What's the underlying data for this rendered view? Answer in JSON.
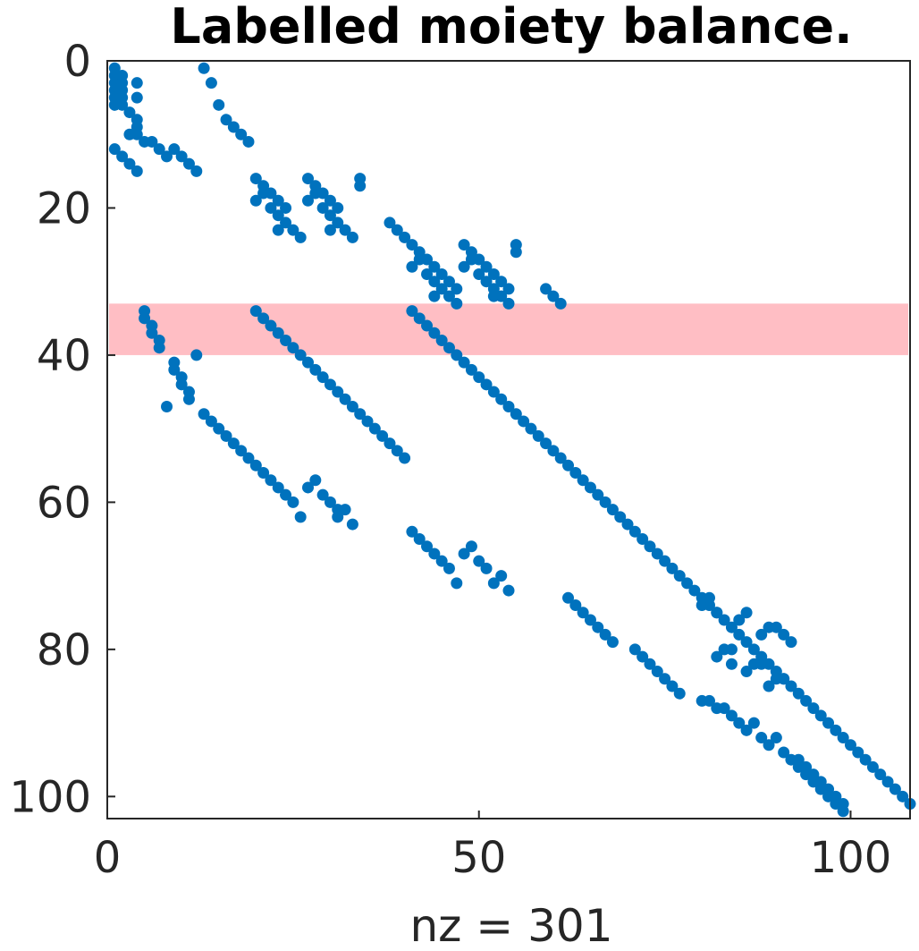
{
  "chart_data": {
    "type": "scatter",
    "title": "Labelled moiety balance.",
    "xlabel": "nz = 301",
    "ylabel": "",
    "xlim": [
      0,
      108
    ],
    "ylim": [
      0,
      103
    ],
    "y_reversed": true,
    "xticks": [
      0,
      50,
      100
    ],
    "yticks": [
      0,
      20,
      40,
      60,
      80,
      100
    ],
    "grid": false,
    "marker_color": "#0072BD",
    "highlight": {
      "y_range": [
        33,
        40
      ],
      "color": "#FFBEC4"
    },
    "points": [
      [
        1,
        1
      ],
      [
        1,
        2
      ],
      [
        1,
        3
      ],
      [
        1,
        4
      ],
      [
        1,
        5
      ],
      [
        1,
        6
      ],
      [
        2,
        2
      ],
      [
        2,
        3
      ],
      [
        2,
        4
      ],
      [
        2,
        5
      ],
      [
        2,
        6
      ],
      [
        3,
        7
      ],
      [
        4,
        8
      ],
      [
        4,
        3
      ],
      [
        4,
        5
      ],
      [
        3,
        10
      ],
      [
        4,
        10
      ],
      [
        4,
        9
      ],
      [
        5,
        11
      ],
      [
        6,
        11
      ],
      [
        7,
        12
      ],
      [
        8,
        13
      ],
      [
        1,
        12
      ],
      [
        2,
        13
      ],
      [
        3,
        14
      ],
      [
        4,
        15
      ],
      [
        9,
        12
      ],
      [
        10,
        13
      ],
      [
        11,
        14
      ],
      [
        12,
        15
      ],
      [
        13,
        1
      ],
      [
        14,
        3
      ],
      [
        15,
        6
      ],
      [
        16,
        8
      ],
      [
        17,
        9
      ],
      [
        18,
        10
      ],
      [
        19,
        11
      ],
      [
        20,
        16
      ],
      [
        21,
        17
      ],
      [
        21,
        18
      ],
      [
        22,
        18
      ],
      [
        23,
        19
      ],
      [
        24,
        20
      ],
      [
        20,
        19
      ],
      [
        22,
        20
      ],
      [
        23,
        21
      ],
      [
        24,
        22
      ],
      [
        25,
        23
      ],
      [
        23,
        23
      ],
      [
        26,
        24
      ],
      [
        27,
        16
      ],
      [
        28,
        17
      ],
      [
        28,
        18
      ],
      [
        29,
        18
      ],
      [
        30,
        19
      ],
      [
        31,
        20
      ],
      [
        27,
        19
      ],
      [
        29,
        20
      ],
      [
        30,
        21
      ],
      [
        31,
        22
      ],
      [
        32,
        23
      ],
      [
        30,
        23
      ],
      [
        33,
        24
      ],
      [
        34,
        16
      ],
      [
        34,
        17
      ],
      [
        38,
        22
      ],
      [
        39,
        23
      ],
      [
        40,
        24
      ],
      [
        41,
        25
      ],
      [
        42,
        26
      ],
      [
        42,
        27
      ],
      [
        43,
        27
      ],
      [
        44,
        28
      ],
      [
        45,
        29
      ],
      [
        46,
        30
      ],
      [
        47,
        31
      ],
      [
        41,
        28
      ],
      [
        43,
        29
      ],
      [
        44,
        30
      ],
      [
        45,
        31
      ],
      [
        44,
        32
      ],
      [
        46,
        32
      ],
      [
        47,
        33
      ],
      [
        48,
        25
      ],
      [
        49,
        26
      ],
      [
        49,
        27
      ],
      [
        50,
        27
      ],
      [
        51,
        28
      ],
      [
        52,
        29
      ],
      [
        53,
        30
      ],
      [
        54,
        31
      ],
      [
        48,
        28
      ],
      [
        50,
        29
      ],
      [
        51,
        30
      ],
      [
        52,
        31
      ],
      [
        52,
        32
      ],
      [
        53,
        32
      ],
      [
        54,
        33
      ],
      [
        55,
        25
      ],
      [
        55,
        26
      ],
      [
        59,
        31
      ],
      [
        60,
        32
      ],
      [
        61,
        33
      ],
      [
        5,
        34
      ],
      [
        5,
        35
      ],
      [
        6,
        36
      ],
      [
        6,
        37
      ],
      [
        7,
        38
      ],
      [
        7,
        39
      ],
      [
        9,
        41
      ],
      [
        9,
        42
      ],
      [
        10,
        43
      ],
      [
        10,
        44
      ],
      [
        11,
        45
      ],
      [
        11,
        46
      ],
      [
        12,
        40
      ],
      [
        8,
        47
      ],
      [
        20,
        34
      ],
      [
        21,
        35
      ],
      [
        22,
        36
      ],
      [
        23,
        37
      ],
      [
        24,
        38
      ],
      [
        25,
        39
      ],
      [
        26,
        40
      ],
      [
        27,
        41
      ],
      [
        28,
        42
      ],
      [
        29,
        43
      ],
      [
        30,
        44
      ],
      [
        31,
        45
      ],
      [
        32,
        46
      ],
      [
        33,
        47
      ],
      [
        34,
        48
      ],
      [
        35,
        49
      ],
      [
        36,
        50
      ],
      [
        37,
        51
      ],
      [
        38,
        52
      ],
      [
        39,
        53
      ],
      [
        40,
        54
      ],
      [
        41,
        34
      ],
      [
        42,
        35
      ],
      [
        43,
        36
      ],
      [
        44,
        37
      ],
      [
        45,
        38
      ],
      [
        46,
        39
      ],
      [
        47,
        40
      ],
      [
        48,
        41
      ],
      [
        49,
        42
      ],
      [
        50,
        43
      ],
      [
        51,
        44
      ],
      [
        52,
        45
      ],
      [
        53,
        46
      ],
      [
        54,
        47
      ],
      [
        55,
        48
      ],
      [
        56,
        49
      ],
      [
        57,
        50
      ],
      [
        58,
        51
      ],
      [
        59,
        52
      ],
      [
        60,
        53
      ],
      [
        61,
        54
      ],
      [
        62,
        55
      ],
      [
        63,
        56
      ],
      [
        64,
        57
      ],
      [
        65,
        58
      ],
      [
        66,
        59
      ],
      [
        67,
        60
      ],
      [
        68,
        61
      ],
      [
        69,
        62
      ],
      [
        70,
        63
      ],
      [
        71,
        64
      ],
      [
        72,
        65
      ],
      [
        73,
        66
      ],
      [
        74,
        67
      ],
      [
        75,
        68
      ],
      [
        76,
        69
      ],
      [
        77,
        70
      ],
      [
        78,
        71
      ],
      [
        79,
        72
      ],
      [
        80,
        73
      ],
      [
        81,
        74
      ],
      [
        82,
        75
      ],
      [
        83,
        76
      ],
      [
        84,
        77
      ],
      [
        85,
        78
      ],
      [
        86,
        79
      ],
      [
        87,
        80
      ],
      [
        88,
        81
      ],
      [
        89,
        82
      ],
      [
        90,
        83
      ],
      [
        91,
        84
      ],
      [
        92,
        85
      ],
      [
        93,
        86
      ],
      [
        94,
        87
      ],
      [
        95,
        88
      ],
      [
        96,
        89
      ],
      [
        97,
        90
      ],
      [
        98,
        91
      ],
      [
        99,
        92
      ],
      [
        100,
        93
      ],
      [
        101,
        94
      ],
      [
        102,
        95
      ],
      [
        103,
        96
      ],
      [
        104,
        97
      ],
      [
        105,
        98
      ],
      [
        106,
        99
      ],
      [
        107,
        100
      ],
      [
        108,
        101
      ],
      [
        13,
        48
      ],
      [
        14,
        49
      ],
      [
        15,
        50
      ],
      [
        16,
        51
      ],
      [
        17,
        52
      ],
      [
        18,
        53
      ],
      [
        19,
        54
      ],
      [
        20,
        55
      ],
      [
        21,
        56
      ],
      [
        22,
        57
      ],
      [
        23,
        58
      ],
      [
        24,
        59
      ],
      [
        25,
        60
      ],
      [
        26,
        62
      ],
      [
        27,
        58
      ],
      [
        28,
        57
      ],
      [
        29,
        59
      ],
      [
        30,
        60
      ],
      [
        31,
        61
      ],
      [
        31,
        62
      ],
      [
        32,
        61
      ],
      [
        33,
        63
      ],
      [
        41,
        64
      ],
      [
        42,
        65
      ],
      [
        43,
        66
      ],
      [
        44,
        67
      ],
      [
        45,
        68
      ],
      [
        46,
        69
      ],
      [
        47,
        71
      ],
      [
        48,
        67
      ],
      [
        49,
        66
      ],
      [
        50,
        68
      ],
      [
        51,
        69
      ],
      [
        52,
        71
      ],
      [
        53,
        70
      ],
      [
        54,
        72
      ],
      [
        62,
        73
      ],
      [
        63,
        74
      ],
      [
        64,
        75
      ],
      [
        65,
        76
      ],
      [
        66,
        77
      ],
      [
        67,
        78
      ],
      [
        68,
        79
      ],
      [
        71,
        80
      ],
      [
        72,
        81
      ],
      [
        73,
        82
      ],
      [
        74,
        83
      ],
      [
        75,
        84
      ],
      [
        76,
        85
      ],
      [
        77,
        86
      ],
      [
        80,
        74
      ],
      [
        81,
        73
      ],
      [
        82,
        75
      ],
      [
        82,
        81
      ],
      [
        83,
        80
      ],
      [
        84,
        82
      ],
      [
        84,
        80
      ],
      [
        85,
        76
      ],
      [
        86,
        75
      ],
      [
        86,
        83
      ],
      [
        87,
        82
      ],
      [
        88,
        82
      ],
      [
        88,
        78
      ],
      [
        89,
        77
      ],
      [
        90,
        77
      ],
      [
        91,
        78
      ],
      [
        92,
        79
      ],
      [
        89,
        85
      ],
      [
        90,
        84
      ],
      [
        91,
        84
      ],
      [
        80,
        87
      ],
      [
        81,
        87
      ],
      [
        82,
        88
      ],
      [
        83,
        88
      ],
      [
        84,
        89
      ],
      [
        85,
        90
      ],
      [
        86,
        91
      ],
      [
        87,
        90
      ],
      [
        88,
        92
      ],
      [
        89,
        93
      ],
      [
        90,
        92
      ],
      [
        91,
        94
      ],
      [
        92,
        95
      ],
      [
        93,
        96
      ],
      [
        94,
        97
      ],
      [
        93,
        95
      ],
      [
        94,
        96
      ],
      [
        95,
        98
      ],
      [
        96,
        99
      ],
      [
        95,
        97
      ],
      [
        96,
        98
      ],
      [
        97,
        100
      ],
      [
        98,
        101
      ],
      [
        99,
        101
      ],
      [
        99,
        102
      ],
      [
        97,
        99
      ],
      [
        98,
        100
      ]
    ]
  }
}
